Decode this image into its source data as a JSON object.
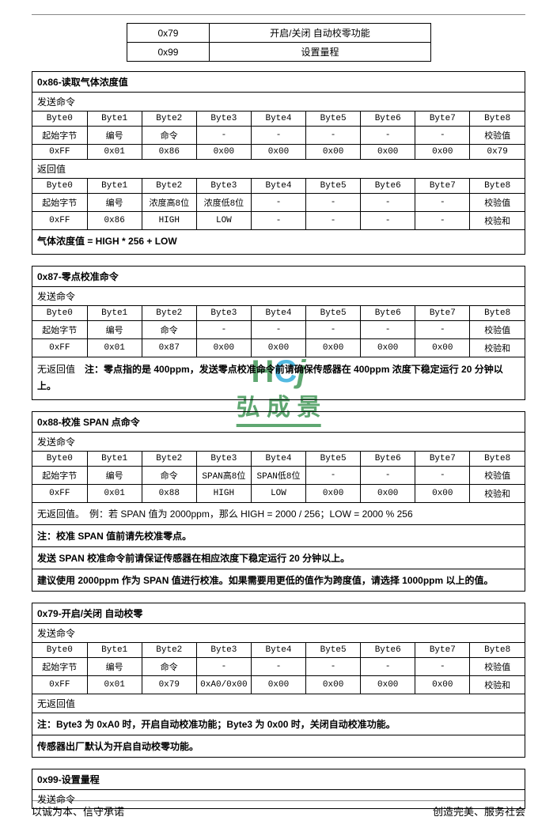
{
  "watermark": {
    "top_h": "H",
    "top_c": "C",
    "top_j": "j",
    "bottom": "弘 成 景",
    "h_color": "#2a8a42",
    "c_color": "#1aa3d8",
    "j_color": "#2a8a42",
    "underline_color": "#2a8a42"
  },
  "top_table": {
    "rows": [
      [
        "0x79",
        "开启/关闭 自动校零功能"
      ],
      [
        "0x99",
        "设置量程"
      ]
    ],
    "col_widths": [
      "100px",
      "285px"
    ]
  },
  "sections": [
    {
      "title": "0x86-读取气体浓度值",
      "blocks": [
        {
          "type": "sub",
          "text": "发送命令"
        },
        {
          "type": "table",
          "rows": [
            [
              "Byte0",
              "Byte1",
              "Byte2",
              "Byte3",
              "Byte4",
              "Byte5",
              "Byte6",
              "Byte7",
              "Byte8"
            ],
            [
              "起始字节",
              "编号",
              "命令",
              "-",
              "-",
              "-",
              "-",
              "-",
              "校验值"
            ],
            [
              "0xFF",
              "0x01",
              "0x86",
              "0x00",
              "0x00",
              "0x00",
              "0x00",
              "0x00",
              "0x79"
            ]
          ]
        },
        {
          "type": "sub",
          "text": "返回值"
        },
        {
          "type": "table",
          "rows": [
            [
              "Byte0",
              "Byte1",
              "Byte2",
              "Byte3",
              "Byte4",
              "Byte5",
              "Byte6",
              "Byte7",
              "Byte8"
            ],
            [
              "起始字节",
              "编号",
              "浓度高8位",
              "浓度低8位",
              "-",
              "-",
              "-",
              "-",
              "校验值"
            ],
            [
              "0xFF",
              "0x86",
              "HIGH",
              "LOW",
              "-",
              "-",
              "-",
              "-",
              "校验和"
            ]
          ]
        },
        {
          "type": "note_bold",
          "text": "气体浓度值 = HIGH * 256 + LOW"
        }
      ]
    },
    {
      "title": "0x87-零点校准命令",
      "blocks": [
        {
          "type": "sub",
          "text": "发送命令"
        },
        {
          "type": "table",
          "rows": [
            [
              "Byte0",
              "Byte1",
              "Byte2",
              "Byte3",
              "Byte4",
              "Byte5",
              "Byte6",
              "Byte7",
              "Byte8"
            ],
            [
              "起始字节",
              "编号",
              "命令",
              "-",
              "-",
              "-",
              "-",
              "-",
              "校验值"
            ],
            [
              "0xFF",
              "0x01",
              "0x87",
              "0x00",
              "0x00",
              "0x00",
              "0x00",
              "0x00",
              "校验和"
            ]
          ]
        },
        {
          "type": "note_prefixed",
          "prefix": "无返回值",
          "text": "注：零点指的是 400ppm，发送零点校准命令前请确保传感器在 400ppm 浓度下稳定运行 20 分钟以上。"
        }
      ]
    },
    {
      "title": "0x88-校准 SPAN 点命令",
      "blocks": [
        {
          "type": "sub",
          "text": "发送命令"
        },
        {
          "type": "table",
          "rows": [
            [
              "Byte0",
              "Byte1",
              "Byte2",
              "Byte3",
              "Byte4",
              "Byte5",
              "Byte6",
              "Byte7",
              "Byte8"
            ],
            [
              "起始字节",
              "编号",
              "命令",
              "SPAN高8位",
              "SPAN低8位",
              "-",
              "-",
              "-",
              "校验值"
            ],
            [
              "0xFF",
              "0x01",
              "0x88",
              "HIGH",
              "LOW",
              "0x00",
              "0x00",
              "0x00",
              "校验和"
            ]
          ]
        },
        {
          "type": "note_row",
          "text": "无返回值。　例：若 SPAN 值为 2000ppm，那么 HIGH = 2000 / 256；LOW = 2000 % 256"
        },
        {
          "type": "note_row_bold",
          "text": "注：校准 SPAN 值前请先校准零点。"
        },
        {
          "type": "note_row_bold",
          "text": "发送 SPAN 校准命令前请保证传感器在相应浓度下稳定运行 20 分钟以上。"
        },
        {
          "type": "note_row_bold",
          "text": "建议使用 2000ppm 作为 SPAN 值进行校准。如果需要用更低的值作为跨度值，请选择 1000ppm 以上的值。"
        }
      ]
    },
    {
      "title": "0x79-开启/关闭  自动校零",
      "blocks": [
        {
          "type": "sub",
          "text": "发送命令"
        },
        {
          "type": "table",
          "rows": [
            [
              "Byte0",
              "Byte1",
              "Byte2",
              "Byte3",
              "Byte4",
              "Byte5",
              "Byte6",
              "Byte7",
              "Byte8"
            ],
            [
              "起始字节",
              "编号",
              "命令",
              "-",
              "-",
              "-",
              "-",
              "-",
              "校验值"
            ],
            [
              "0xFF",
              "0x01",
              "0x79",
              "0xA0/0x00",
              "0x00",
              "0x00",
              "0x00",
              "0x00",
              "校验和"
            ]
          ]
        },
        {
          "type": "sub",
          "text": "无返回值"
        },
        {
          "type": "note_row_bold",
          "text": "注：Byte3 为 0xA0 时，开启自动校准功能；Byte3 为 0x00 时，关闭自动校准功能。"
        },
        {
          "type": "note_row_bold",
          "text": "传感器出厂默认为开启自动校零功能。"
        }
      ]
    },
    {
      "title": "0x99-设置量程",
      "blocks": [
        {
          "type": "sub_last",
          "text": "发送命令"
        }
      ]
    }
  ],
  "footer": {
    "left": "以诚为本、信守承诺",
    "right": "创造完美、服务社会"
  }
}
